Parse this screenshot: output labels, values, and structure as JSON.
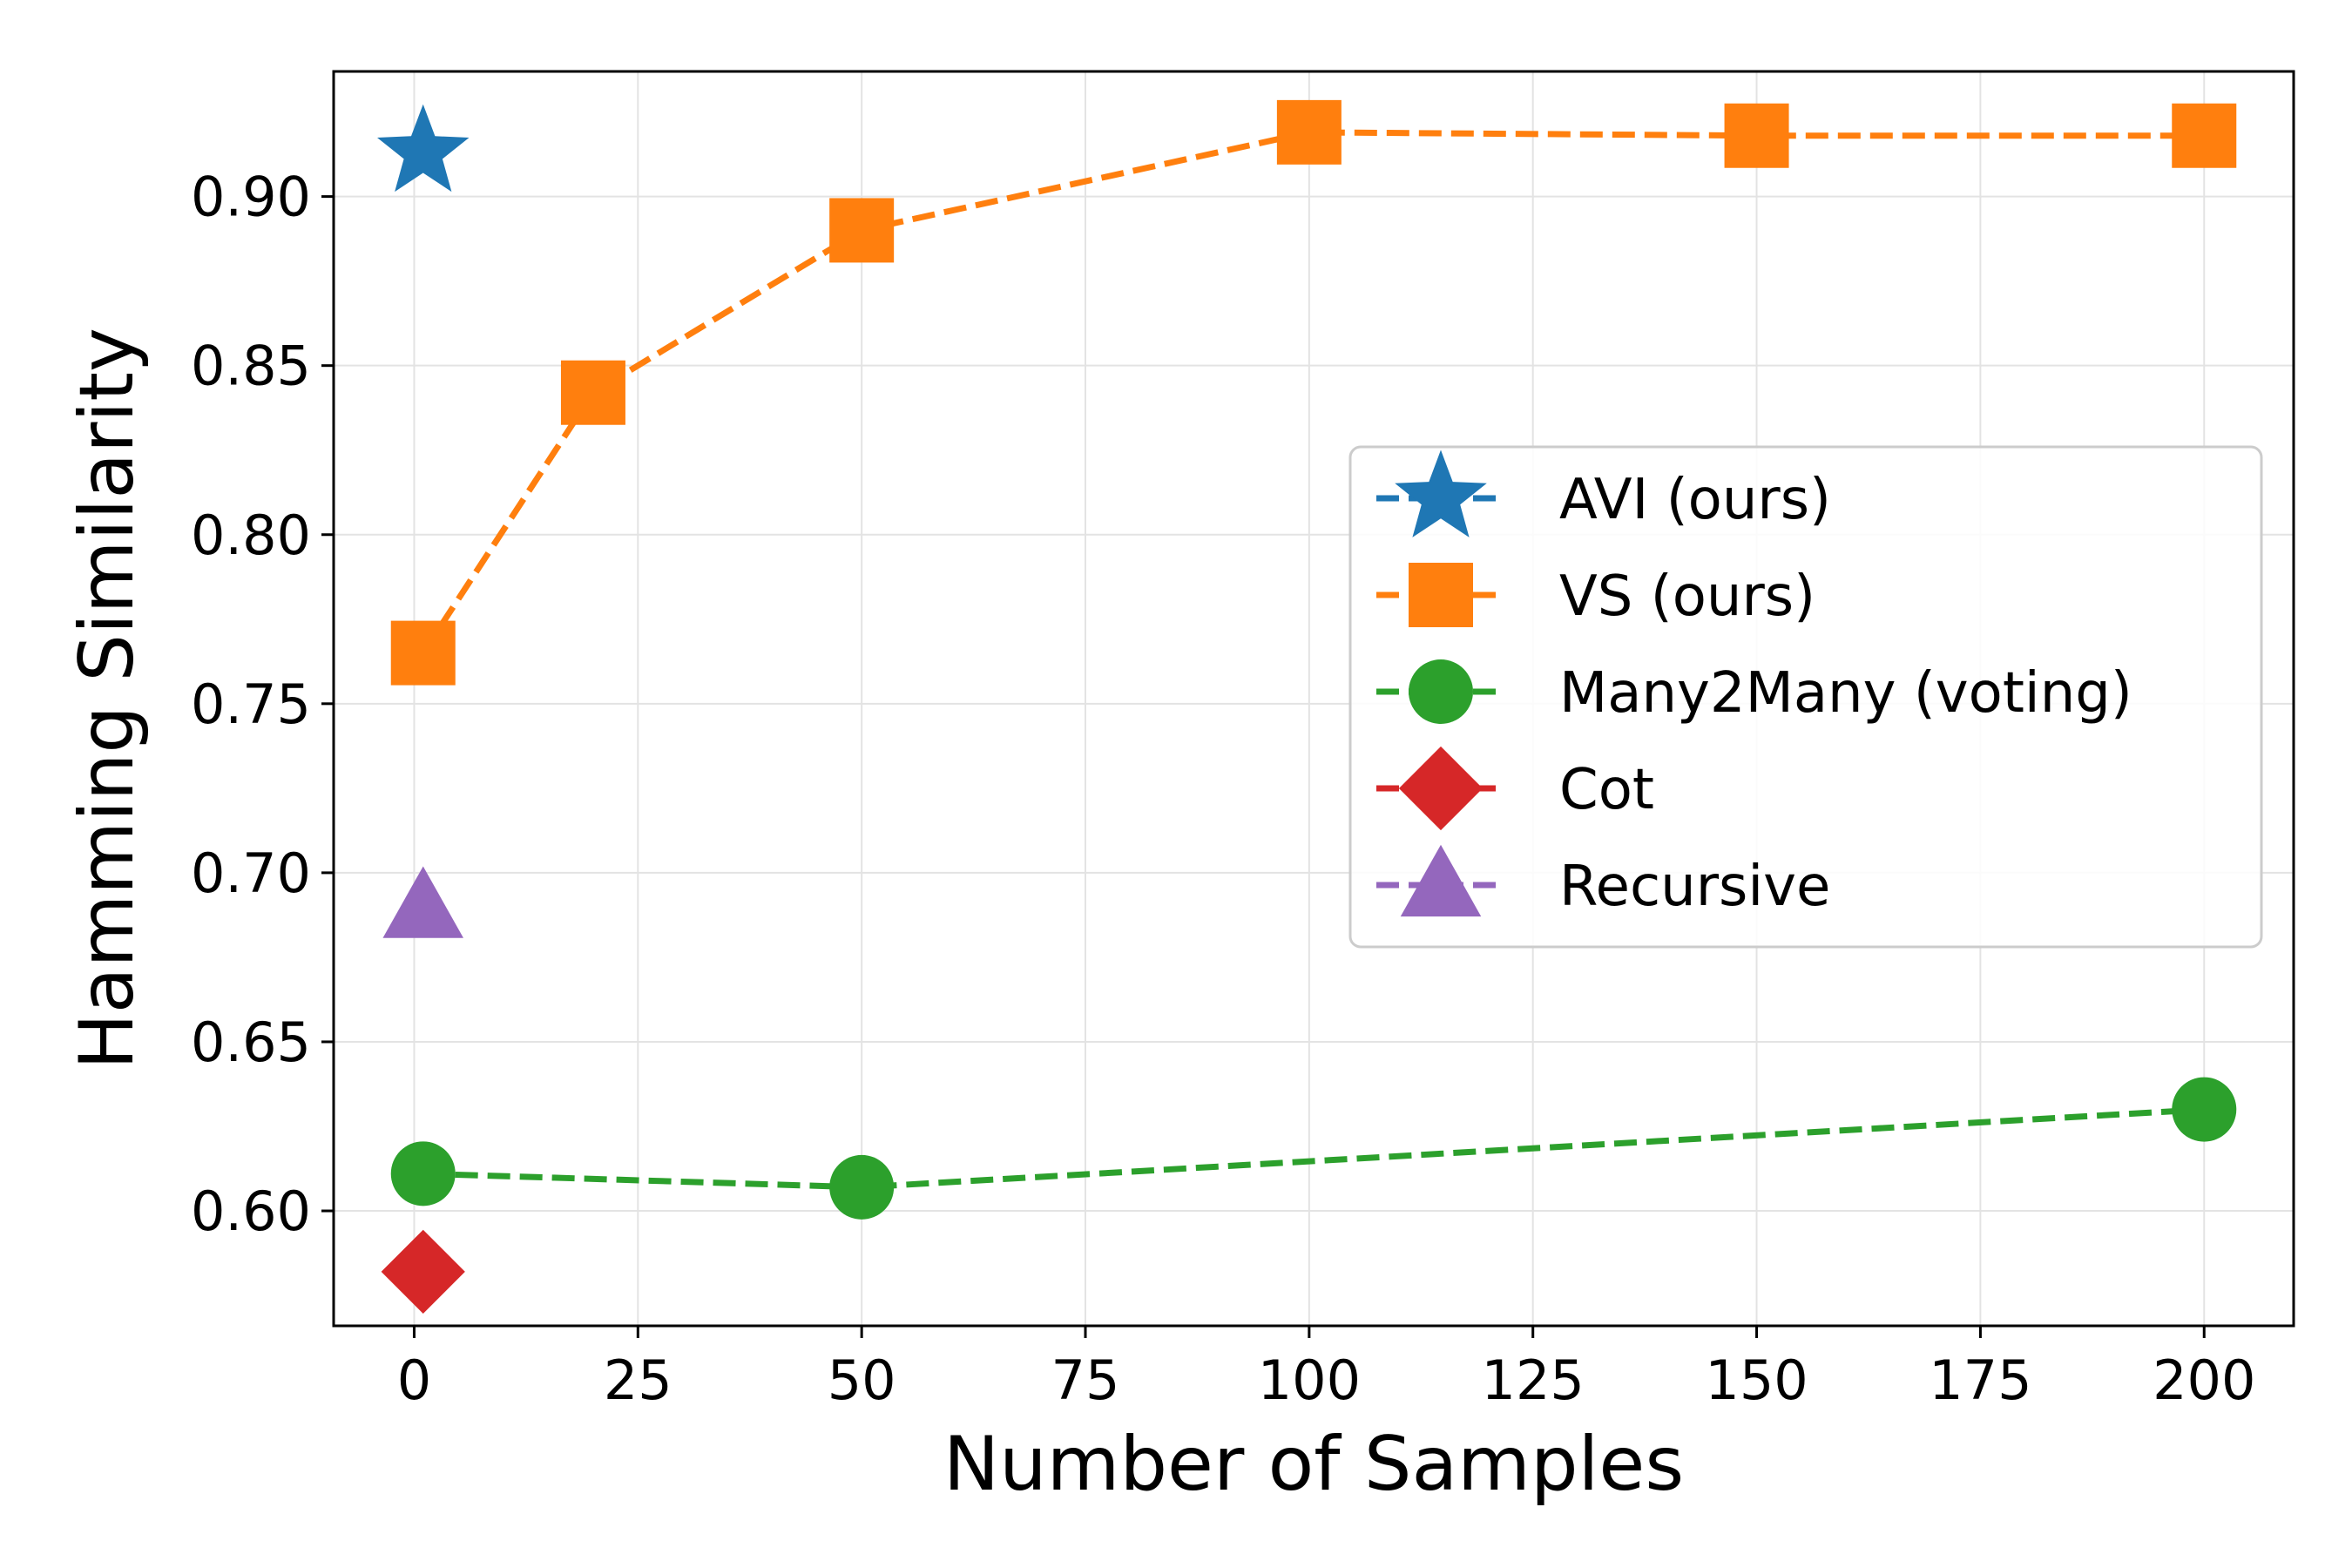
{
  "chart_data": {
    "type": "line",
    "title": "",
    "xlabel": "Number of Samples",
    "ylabel": "Hamming Similarity",
    "xlim": [
      -9,
      210
    ],
    "ylim": [
      0.566,
      0.937
    ],
    "grid": true,
    "legend_position": "center-right",
    "x_ticks": [
      0,
      25,
      50,
      75,
      100,
      125,
      150,
      175,
      200
    ],
    "x_tick_labels": [
      "0",
      "25",
      "50",
      "75",
      "100",
      "125",
      "150",
      "175",
      "200"
    ],
    "y_ticks": [
      0.6,
      0.65,
      0.7,
      0.75,
      0.8,
      0.85,
      0.9
    ],
    "y_tick_labels": [
      "0.60",
      "0.65",
      "0.70",
      "0.75",
      "0.80",
      "0.85",
      "0.90"
    ],
    "series": [
      {
        "name": "AVI (ours)",
        "marker": "star",
        "color": "#1f77b4",
        "x": [
          1
        ],
        "y": [
          0.913
        ]
      },
      {
        "name": "VS (ours)",
        "marker": "square",
        "color": "#ff7f0e",
        "x": [
          1,
          20,
          50,
          100,
          150,
          200
        ],
        "y": [
          0.765,
          0.842,
          0.89,
          0.919,
          0.918,
          0.918
        ]
      },
      {
        "name": "Many2Many (voting)",
        "marker": "circle",
        "color": "#2ca02c",
        "x": [
          1,
          50,
          200
        ],
        "y": [
          0.611,
          0.607,
          0.63
        ]
      },
      {
        "name": "Cot",
        "marker": "diamond",
        "color": "#d62728",
        "x": [
          1
        ],
        "y": [
          0.582
        ]
      },
      {
        "name": "Recursive",
        "marker": "triangle",
        "color": "#9467bd",
        "x": [
          1
        ],
        "y": [
          0.69
        ]
      }
    ]
  }
}
